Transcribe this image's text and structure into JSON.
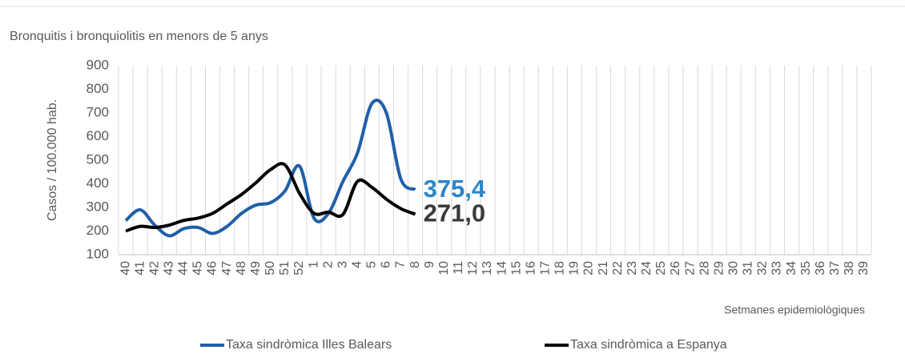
{
  "chart_data": {
    "type": "line",
    "title": "Bronquitis i bronquiolitis  en menors de 5 anys",
    "y_label": "Casos / 100.000 hab.",
    "x_label": "Setmanes epidemiològiques",
    "categories": [
      "40",
      "41",
      "42",
      "43",
      "44",
      "45",
      "46",
      "47",
      "48",
      "49",
      "50",
      "51",
      "52",
      "1",
      "2",
      "3",
      "4",
      "5",
      "6",
      "7",
      "8",
      "9",
      "10",
      "11",
      "12",
      "13",
      "14",
      "15",
      "16",
      "17",
      "18",
      "19",
      "20",
      "21",
      "22",
      "23",
      "24",
      "25",
      "26",
      "27",
      "28",
      "29",
      "30",
      "31",
      "32",
      "33",
      "34",
      "35",
      "36",
      "37",
      "38",
      "39"
    ],
    "series": [
      {
        "name": "Taxa sindròmica Illes Balears",
        "color": "#1f5fa8",
        "values": [
          245,
          290,
          225,
          180,
          210,
          215,
          190,
          220,
          275,
          310,
          320,
          370,
          475,
          255,
          275,
          410,
          530,
          740,
          700,
          420,
          375.4,
          null,
          null,
          null,
          null,
          null,
          null,
          null,
          null,
          null,
          null,
          null,
          null,
          null,
          null,
          null,
          null,
          null,
          null,
          null,
          null,
          null,
          null,
          null,
          null,
          null,
          null,
          null,
          null,
          null,
          null,
          null
        ],
        "value_labels": [
          null,
          null,
          null,
          null,
          null,
          null,
          null,
          null,
          null,
          null,
          null,
          null,
          null,
          null,
          null,
          null,
          null,
          null,
          null,
          null,
          "375,4",
          null,
          null,
          null,
          null,
          null,
          null,
          null,
          null,
          null,
          null,
          null,
          null,
          null,
          null,
          null,
          null,
          null,
          null,
          null,
          null,
          null,
          null,
          null,
          null,
          null,
          null,
          null,
          null,
          null,
          null,
          null
        ],
        "label_color": "#2e86c8"
      },
      {
        "name": "Taxa sindròmica a Espanya",
        "color": "#000000",
        "values": [
          200,
          220,
          215,
          225,
          245,
          255,
          275,
          315,
          355,
          405,
          460,
          480,
          360,
          275,
          280,
          270,
          410,
          385,
          335,
          295,
          271.0,
          null,
          null,
          null,
          null,
          null,
          null,
          null,
          null,
          null,
          null,
          null,
          null,
          null,
          null,
          null,
          null,
          null,
          null,
          null,
          null,
          null,
          null,
          null,
          null,
          null,
          null,
          null,
          null,
          null,
          null,
          null
        ],
        "value_labels": [
          null,
          null,
          null,
          null,
          null,
          null,
          null,
          null,
          null,
          null,
          null,
          null,
          null,
          null,
          null,
          null,
          null,
          null,
          null,
          null,
          "271,0",
          null,
          null,
          null,
          null,
          null,
          null,
          null,
          null,
          null,
          null,
          null,
          null,
          null,
          null,
          null,
          null,
          null,
          null,
          null,
          null,
          null,
          null,
          null,
          null,
          null,
          null,
          null,
          null,
          null,
          null,
          null
        ],
        "label_color": "#3a3a3a"
      }
    ],
    "ylim": [
      100,
      900
    ],
    "yticks": [
      100,
      200,
      300,
      400,
      500,
      600,
      700,
      800,
      900
    ],
    "grid": true,
    "legend": "bottom"
  }
}
